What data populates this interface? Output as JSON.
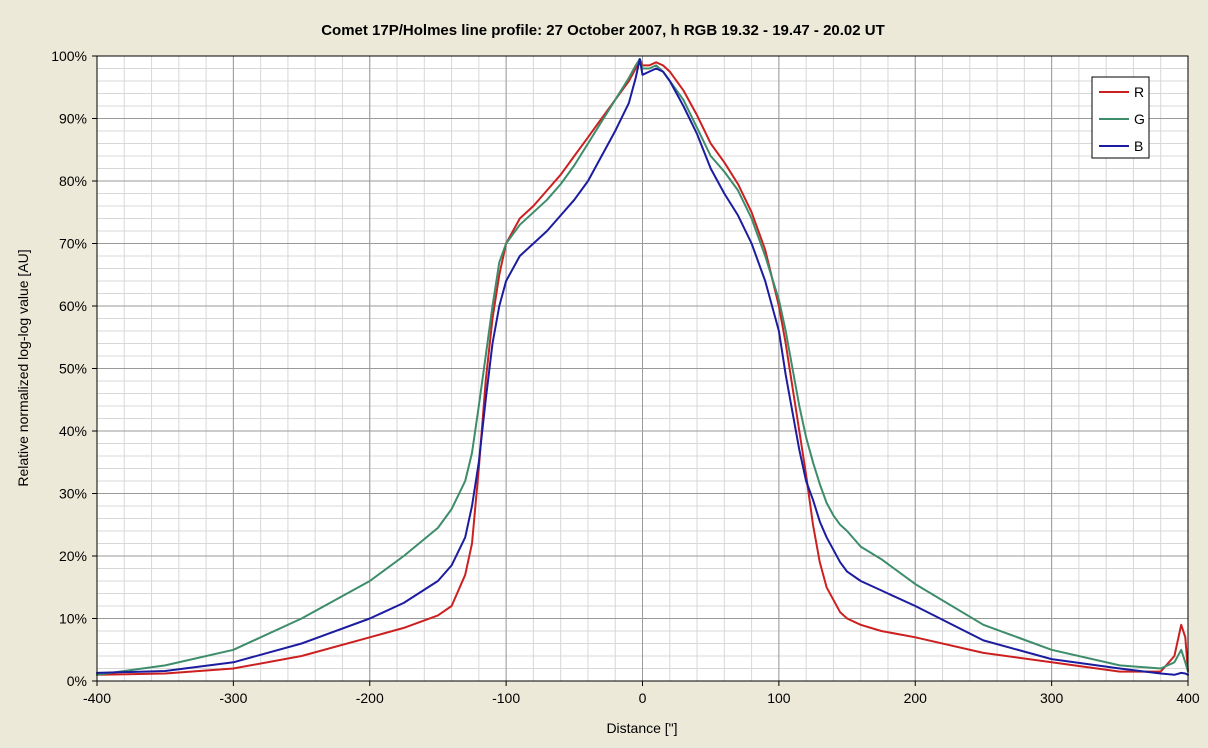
{
  "chart_data": {
    "type": "line",
    "title": "Comet 17P/Holmes line profile: 27 October 2007, h RGB 19.32 - 19.47 - 20.02 UT",
    "xlabel": "Distance [\"]",
    "ylabel": "Relative normalized log-log value [AU]",
    "xlim": [
      -400,
      400
    ],
    "ylim": [
      0,
      100
    ],
    "x_ticks": [
      -400,
      -300,
      -200,
      -100,
      0,
      100,
      200,
      300,
      400
    ],
    "y_ticks": [
      0,
      10,
      20,
      30,
      40,
      50,
      60,
      70,
      80,
      90,
      100
    ],
    "y_tick_format": "percent",
    "grid": true,
    "legend_position": "top-right",
    "series": [
      {
        "name": "R",
        "color": "#cc2020",
        "x": [
          -400,
          -350,
          -300,
          -250,
          -200,
          -175,
          -150,
          -140,
          -130,
          -125,
          -120,
          -115,
          -110,
          -105,
          -100,
          -90,
          -80,
          -70,
          -60,
          -50,
          -40,
          -30,
          -20,
          -10,
          -5,
          -2,
          0,
          5,
          10,
          15,
          20,
          30,
          40,
          50,
          60,
          70,
          80,
          90,
          100,
          105,
          110,
          115,
          120,
          125,
          130,
          135,
          140,
          145,
          150,
          160,
          175,
          200,
          250,
          300,
          350,
          380,
          390,
          395,
          398,
          400
        ],
        "y": [
          1,
          1.2,
          2,
          4,
          7,
          8.5,
          10.5,
          12,
          17,
          22,
          34,
          48,
          58,
          65,
          70,
          74,
          76,
          78.5,
          81,
          84,
          87,
          90,
          93,
          96,
          98,
          99.5,
          98.5,
          98.5,
          99,
          98.5,
          97.5,
          94.5,
          90.5,
          86,
          83,
          79.5,
          75,
          69,
          60,
          54,
          47,
          40,
          33,
          25,
          19,
          15,
          13,
          11,
          10,
          9,
          8,
          7,
          4.5,
          3,
          1.5,
          1.5,
          4,
          9,
          7,
          1.5
        ]
      },
      {
        "name": "G",
        "color": "#3d8c6a",
        "x": [
          -400,
          -350,
          -300,
          -250,
          -200,
          -175,
          -150,
          -140,
          -130,
          -125,
          -120,
          -115,
          -110,
          -105,
          -100,
          -90,
          -80,
          -70,
          -60,
          -50,
          -40,
          -30,
          -20,
          -10,
          -5,
          -2,
          0,
          5,
          10,
          15,
          20,
          30,
          40,
          50,
          60,
          70,
          80,
          90,
          100,
          105,
          110,
          115,
          120,
          125,
          130,
          135,
          140,
          145,
          150,
          160,
          175,
          200,
          250,
          300,
          350,
          380,
          390,
          395,
          398,
          400
        ],
        "y": [
          1,
          2.5,
          5,
          10,
          16,
          20,
          24.5,
          27.5,
          32,
          36.5,
          44,
          52,
          60,
          67,
          70,
          73,
          75,
          77,
          79.5,
          82.5,
          86,
          89.5,
          93,
          96.5,
          98.5,
          99.5,
          98,
          98,
          98.5,
          97.5,
          96,
          93,
          88.5,
          84,
          81.5,
          78.5,
          74,
          68,
          61,
          56,
          50,
          44,
          39,
          35,
          31.5,
          28.5,
          26.5,
          25,
          24,
          21.5,
          19.5,
          15.5,
          9,
          5,
          2.5,
          2,
          3,
          5,
          3,
          1.5
        ]
      },
      {
        "name": "B",
        "color": "#1c1ca0",
        "x": [
          -400,
          -350,
          -300,
          -250,
          -200,
          -175,
          -150,
          -140,
          -130,
          -125,
          -120,
          -115,
          -110,
          -105,
          -100,
          -90,
          -80,
          -70,
          -60,
          -50,
          -40,
          -30,
          -20,
          -10,
          -5,
          -2,
          0,
          5,
          10,
          15,
          20,
          30,
          40,
          50,
          60,
          70,
          80,
          90,
          100,
          105,
          110,
          115,
          120,
          125,
          130,
          135,
          140,
          145,
          150,
          160,
          175,
          200,
          250,
          300,
          350,
          380,
          390,
          395,
          398,
          400
        ],
        "y": [
          1.3,
          1.6,
          3,
          6,
          10,
          12.5,
          16,
          18.5,
          23,
          28,
          35,
          45,
          54,
          60,
          64,
          68,
          70,
          72,
          74.5,
          77,
          80,
          84,
          88,
          92.5,
          96.5,
          99.5,
          97,
          97.5,
          98,
          97.5,
          96,
          92,
          87.5,
          82,
          78,
          74.5,
          70,
          64,
          56,
          49,
          43,
          37,
          32,
          29,
          25.5,
          23,
          21,
          19,
          17.5,
          16,
          14.5,
          12,
          6.5,
          3.5,
          2,
          1.2,
          1,
          1.3,
          1.2,
          1
        ]
      }
    ]
  }
}
